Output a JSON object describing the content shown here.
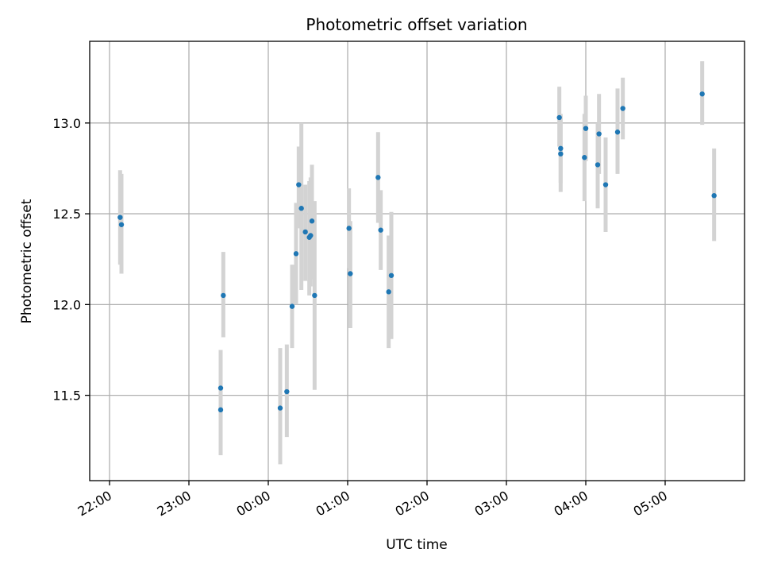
{
  "chart_data": {
    "type": "scatter",
    "title": "Photometric offset variation",
    "xlabel": "UTC time",
    "ylabel": "Photometric offset",
    "x_axis_type": "time",
    "xlim": [
      "21:45",
      "06:00"
    ],
    "ylim": [
      11.03,
      13.45
    ],
    "x_ticks": [
      "22:00",
      "23:00",
      "00:00",
      "01:00",
      "02:00",
      "03:00",
      "04:00",
      "05:00"
    ],
    "y_ticks": [
      11.5,
      12.0,
      12.5,
      13.0
    ],
    "y_tick_labels": [
      "11.5",
      "12.0",
      "12.5",
      "13.0"
    ],
    "grid": true,
    "legend": "none",
    "colors": {
      "point": "#1f77b4",
      "errorbar": "#d3d3d3",
      "grid": "#b0b0b0"
    },
    "series": [
      {
        "points": [
          {
            "t": "22:08",
            "y": 12.48,
            "lo": 12.22,
            "hi": 12.74
          },
          {
            "t": "22:09",
            "y": 12.44,
            "lo": 12.17,
            "hi": 12.72
          },
          {
            "t": "23:24",
            "y": 11.54,
            "lo": 11.33,
            "hi": 11.75
          },
          {
            "t": "23:24",
            "y": 11.42,
            "lo": 11.17,
            "hi": 11.68
          },
          {
            "t": "23:26",
            "y": 12.05,
            "lo": 11.82,
            "hi": 12.29
          },
          {
            "t": "00:09",
            "y": 11.43,
            "lo": 11.12,
            "hi": 11.76
          },
          {
            "t": "00:14",
            "y": 11.52,
            "lo": 11.27,
            "hi": 11.78
          },
          {
            "t": "00:18",
            "y": 11.99,
            "lo": 11.76,
            "hi": 12.22
          },
          {
            "t": "00:21",
            "y": 12.28,
            "lo": 12.0,
            "hi": 12.56
          },
          {
            "t": "00:23",
            "y": 12.66,
            "lo": 12.42,
            "hi": 12.87
          },
          {
            "t": "00:25",
            "y": 12.53,
            "lo": 12.08,
            "hi": 13.0
          },
          {
            "t": "00:28",
            "y": 12.4,
            "lo": 12.13,
            "hi": 12.66
          },
          {
            "t": "00:31",
            "y": 12.37,
            "lo": 12.05,
            "hi": 12.68
          },
          {
            "t": "00:32",
            "y": 12.38,
            "lo": 12.1,
            "hi": 12.7
          },
          {
            "t": "00:33",
            "y": 12.46,
            "lo": 12.14,
            "hi": 12.77
          },
          {
            "t": "00:35",
            "y": 12.05,
            "lo": 11.53,
            "hi": 12.57
          },
          {
            "t": "01:01",
            "y": 12.42,
            "lo": 12.2,
            "hi": 12.64
          },
          {
            "t": "01:02",
            "y": 12.17,
            "lo": 11.87,
            "hi": 12.46
          },
          {
            "t": "01:23",
            "y": 12.7,
            "lo": 12.45,
            "hi": 12.95
          },
          {
            "t": "01:25",
            "y": 12.41,
            "lo": 12.19,
            "hi": 12.63
          },
          {
            "t": "01:31",
            "y": 12.07,
            "lo": 11.76,
            "hi": 12.38
          },
          {
            "t": "01:33",
            "y": 12.16,
            "lo": 11.81,
            "hi": 12.51
          },
          {
            "t": "03:40",
            "y": 13.03,
            "lo": 12.87,
            "hi": 13.2
          },
          {
            "t": "03:41",
            "y": 12.86,
            "lo": 12.67,
            "hi": 13.05
          },
          {
            "t": "03:41",
            "y": 12.83,
            "lo": 12.62,
            "hi": 13.04
          },
          {
            "t": "03:59",
            "y": 12.81,
            "lo": 12.57,
            "hi": 13.05
          },
          {
            "t": "04:00",
            "y": 12.97,
            "lo": 12.79,
            "hi": 13.15
          },
          {
            "t": "04:09",
            "y": 12.77,
            "lo": 12.53,
            "hi": 13.0
          },
          {
            "t": "04:10",
            "y": 12.94,
            "lo": 12.72,
            "hi": 13.16
          },
          {
            "t": "04:15",
            "y": 12.66,
            "lo": 12.4,
            "hi": 12.92
          },
          {
            "t": "04:24",
            "y": 12.95,
            "lo": 12.72,
            "hi": 13.19
          },
          {
            "t": "04:28",
            "y": 13.08,
            "lo": 12.91,
            "hi": 13.25
          },
          {
            "t": "05:28",
            "y": 13.16,
            "lo": 12.99,
            "hi": 13.34
          },
          {
            "t": "05:37",
            "y": 12.6,
            "lo": 12.35,
            "hi": 12.86
          }
        ]
      }
    ]
  }
}
